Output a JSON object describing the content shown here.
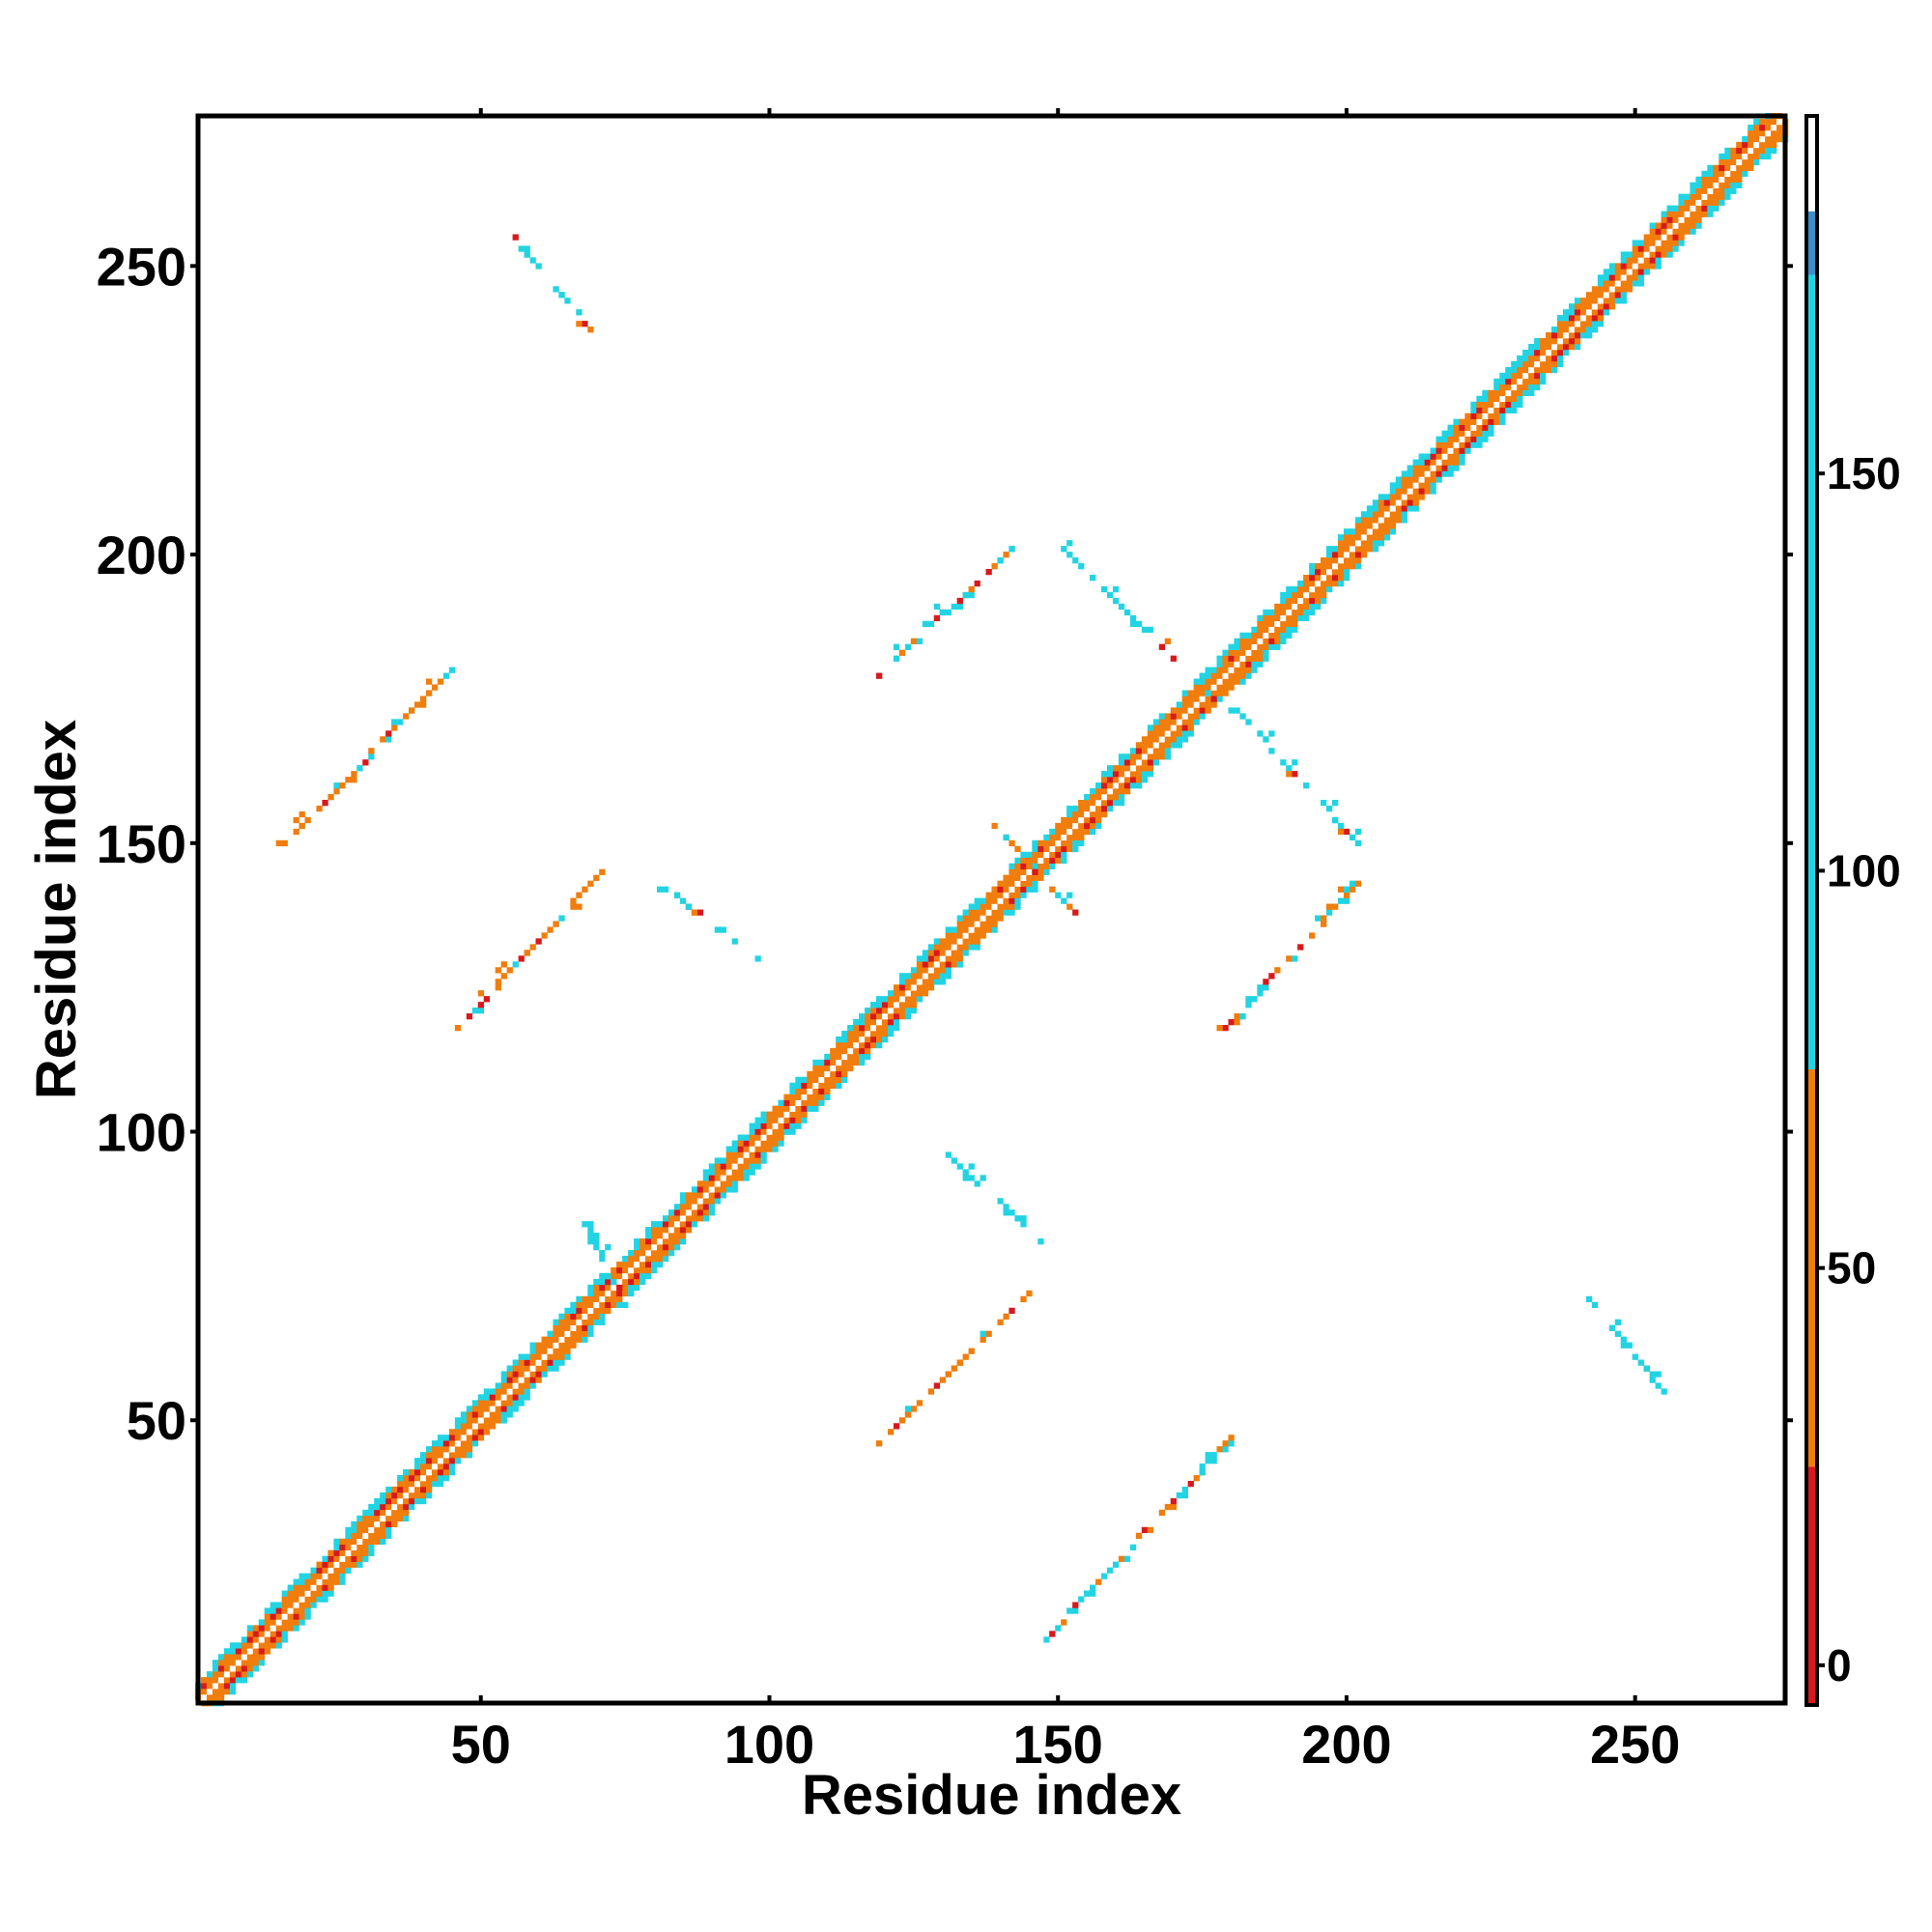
{
  "chart_data": {
    "type": "heatmap",
    "xlabel": "Residue index",
    "ylabel": "Residue index",
    "xlim": [
      1,
      276
    ],
    "ylim": [
      1,
      276
    ],
    "x_ticks": [
      50,
      100,
      150,
      200,
      250
    ],
    "y_ticks": [
      50,
      100,
      150,
      200,
      250
    ],
    "colorbar": {
      "range": [
        -5,
        195
      ],
      "ticks": [
        0,
        50,
        100,
        150
      ],
      "bands": [
        {
          "from": -5,
          "to": 25,
          "color": "#d7191c"
        },
        {
          "from": 25,
          "to": 75,
          "color": "#f07d0c"
        },
        {
          "from": 75,
          "to": 175,
          "color": "#22d4e3"
        },
        {
          "from": 175,
          "to": 183,
          "color": "#3b8fc9"
        },
        {
          "from": 183,
          "to": 195,
          "color": "#ffffff"
        }
      ]
    },
    "diagonal": {
      "from": 1,
      "to": 276
    },
    "off_diagonal_segments": [
      {
        "x": [
          15,
          47
        ],
        "y": [
          149,
          182
        ],
        "value": 60
      },
      {
        "x": [
          46,
          72
        ],
        "y": [
          118,
          146
        ],
        "value": 50
      },
      {
        "x": [
          82,
          98
        ],
        "y": [
          142,
          130
        ],
        "value": 100
      },
      {
        "x": [
          56,
          70
        ],
        "y": [
          255,
          238
        ],
        "value": 100
      },
      {
        "x": [
          119,
          142
        ],
        "y": [
          179,
          201
        ],
        "value": 80
      },
      {
        "x": [
          151,
          178
        ],
        "y": [
          201,
          174
        ],
        "value": 110
      },
      {
        "x": [
          179,
          202
        ],
        "y": [
          118,
          143
        ],
        "value": 70
      },
      {
        "x": [
          181,
          202
        ],
        "y": [
          173,
          150
        ],
        "value": 110
      },
      {
        "x": [
          131,
          147
        ],
        "y": [
          96,
          81
        ],
        "value": 110
      },
      {
        "x": [
          119,
          145
        ],
        "y": [
          46,
          72
        ],
        "value": 50
      },
      {
        "x": [
          148,
          180
        ],
        "y": [
          12,
          47
        ],
        "value": 80
      },
      {
        "x": [
          242,
          255
        ],
        "y": [
          71,
          55
        ],
        "value": 110
      },
      {
        "x": [
          138,
          153
        ],
        "y": [
          154,
          138
        ],
        "value": 70
      },
      {
        "x": [
          68,
          75
        ],
        "y": [
          84,
          70
        ],
        "value": 100
      }
    ]
  }
}
